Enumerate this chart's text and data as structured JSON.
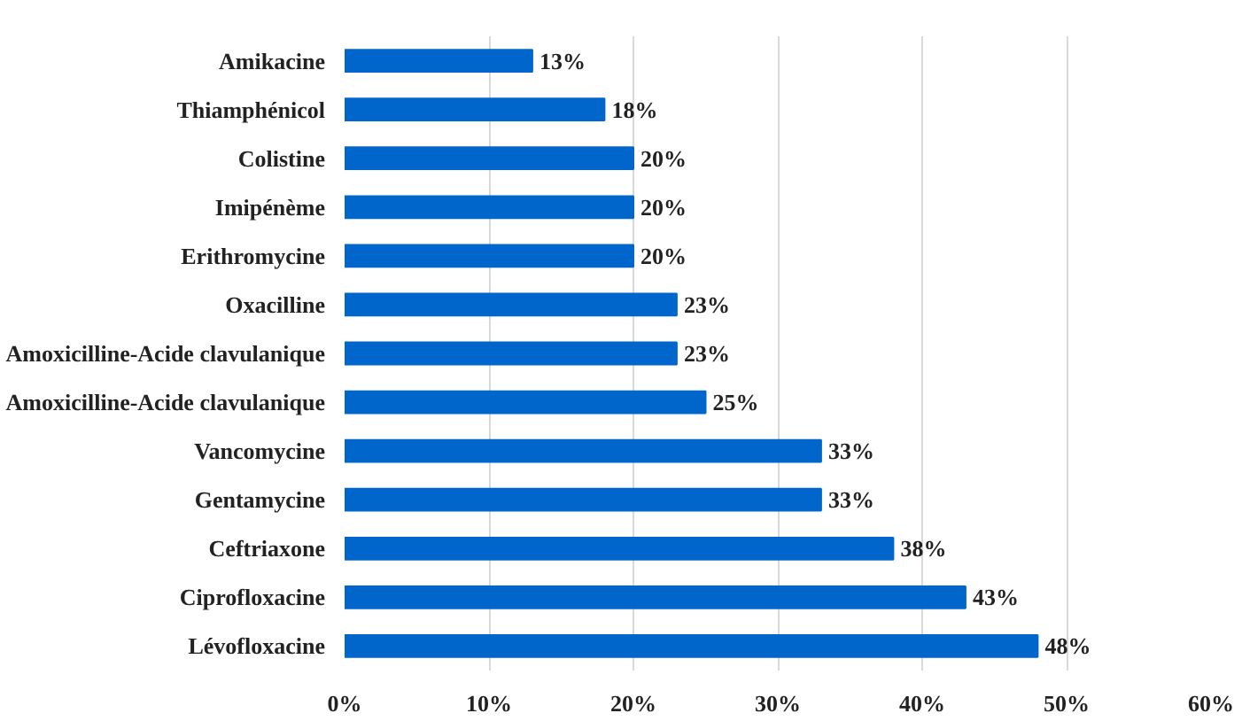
{
  "chart_data": {
    "type": "bar",
    "orientation": "horizontal",
    "categories": [
      "Amikacine",
      "Thiamphénicol",
      "Colistine",
      "Imipénème",
      "Erithromycine",
      "Oxacilline",
      "Amoxicilline-Acide clavulanique",
      "Amoxicilline-Acide clavulanique",
      "Vancomycine",
      "Gentamycine",
      "Ceftriaxone",
      "Ciprofloxacine",
      "Lévofloxacine"
    ],
    "values": [
      13,
      18,
      20,
      20,
      20,
      23,
      23,
      25,
      33,
      33,
      38,
      43,
      48
    ],
    "value_labels": [
      "13%",
      "18%",
      "20%",
      "20%",
      "20%",
      "23%",
      "23%",
      "25%",
      "33%",
      "33%",
      "38%",
      "43%",
      "48%"
    ],
    "color": "#0066cc",
    "xlim": [
      0,
      60
    ],
    "xticks": [
      {
        "value": 0,
        "label": "0%"
      },
      {
        "value": 10,
        "label": "10%"
      },
      {
        "value": 20,
        "label": "20%"
      },
      {
        "value": 30,
        "label": "30%"
      },
      {
        "value": 40,
        "label": "40%"
      },
      {
        "value": 50,
        "label": "50%"
      },
      {
        "value": 60,
        "label": "60%"
      }
    ],
    "grid": "x"
  }
}
